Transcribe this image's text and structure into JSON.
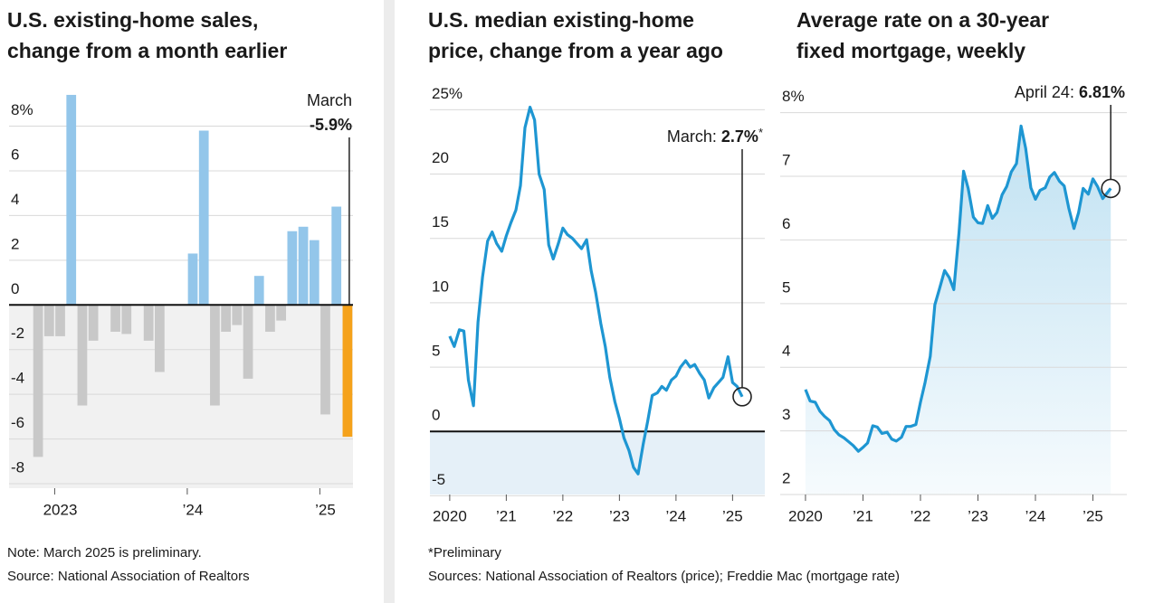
{
  "chart_data": [
    {
      "type": "bar",
      "title": [
        "U.S. existing-home sales,",
        "change from a month earlier"
      ],
      "categories": [
        null,
        null,
        "2023",
        null,
        null,
        null,
        null,
        null,
        null,
        null,
        null,
        null,
        null,
        null,
        "’24",
        null,
        null,
        null,
        null,
        null,
        null,
        null,
        null,
        null,
        null,
        null,
        "’25",
        null,
        null
      ],
      "values": [
        -6.8,
        -1.4,
        -1.4,
        9.4,
        -4.5,
        -1.6,
        0,
        -1.2,
        -1.3,
        0,
        -1.6,
        -3.0,
        0,
        0,
        2.3,
        7.8,
        -4.5,
        -1.2,
        -0.9,
        -3.3,
        1.3,
        -1.2,
        -0.7,
        3.3,
        3.5,
        2.9,
        -4.9,
        4.4,
        -5.9
      ],
      "value_labels": [
        null,
        null,
        null,
        null,
        null,
        null,
        null,
        null,
        null,
        null,
        null,
        null,
        null,
        null,
        null,
        null,
        null,
        null,
        null,
        null,
        null,
        null,
        null,
        null,
        null,
        null,
        null,
        null,
        "-5.9%"
      ],
      "colors": [
        "#c8c8c8",
        "#c8c8c8",
        "#c8c8c8",
        "#93c6ea",
        "#c8c8c8",
        "#c8c8c8",
        "#c8c8c8",
        "#c8c8c8",
        "#c8c8c8",
        "#c8c8c8",
        "#c8c8c8",
        "#c8c8c8",
        "#c8c8c8",
        "#c8c8c8",
        "#93c6ea",
        "#93c6ea",
        "#c8c8c8",
        "#c8c8c8",
        "#c8c8c8",
        "#c8c8c8",
        "#93c6ea",
        "#c8c8c8",
        "#c8c8c8",
        "#93c6ea",
        "#93c6ea",
        "#93c6ea",
        "#c8c8c8",
        "#93c6ea",
        "#f5a21b"
      ],
      "annotation": "March",
      "ylim": [
        -8.2,
        9.6
      ],
      "yticks": [
        {
          "value": 8,
          "label": "8%"
        },
        6,
        4,
        2,
        0,
        -2,
        -4,
        -6,
        -8
      ],
      "grid": true,
      "negative_fill": "#f1f1f1",
      "note": "Note: March 2025 is preliminary.",
      "source": "Source: National Association of Realtors"
    },
    {
      "type": "line",
      "title": [
        "U.S. median existing-home",
        "price, change from a year ago"
      ],
      "x": [
        2020,
        2020.08,
        2020.17,
        2020.25,
        2020.33,
        2020.42,
        2020.5,
        2020.58,
        2020.67,
        2020.75,
        2020.83,
        2020.92,
        2021,
        2021.08,
        2021.17,
        2021.25,
        2021.33,
        2021.42,
        2021.5,
        2021.58,
        2021.67,
        2021.75,
        2021.83,
        2021.92,
        2022,
        2022.08,
        2022.17,
        2022.25,
        2022.33,
        2022.42,
        2022.5,
        2022.58,
        2022.67,
        2022.75,
        2022.83,
        2022.92,
        2023,
        2023.08,
        2023.17,
        2023.25,
        2023.33,
        2023.42,
        2023.5,
        2023.58,
        2023.67,
        2023.75,
        2023.83,
        2023.92,
        2024,
        2024.08,
        2024.17,
        2024.25,
        2024.33,
        2024.42,
        2024.5,
        2024.58,
        2024.67,
        2024.75,
        2024.83,
        2024.92,
        2025,
        2025.08,
        2025.17
      ],
      "values": [
        7.4,
        6.6,
        7.9,
        7.8,
        4.0,
        2.0,
        8.5,
        12.0,
        14.8,
        15.5,
        14.6,
        14.0,
        15.2,
        16.2,
        17.2,
        19.1,
        23.6,
        25.2,
        24.2,
        20.0,
        18.8,
        14.5,
        13.4,
        14.6,
        15.8,
        15.3,
        15.0,
        14.6,
        14.2,
        14.9,
        12.5,
        10.8,
        8.4,
        6.6,
        4.2,
        2.3,
        1.0,
        -0.5,
        -1.5,
        -2.8,
        -3.3,
        -1.0,
        0.8,
        2.8,
        3.0,
        3.5,
        3.2,
        4.0,
        4.3,
        5.0,
        5.5,
        5.0,
        5.2,
        4.5,
        4.0,
        2.6,
        3.4,
        3.8,
        4.2,
        5.8,
        3.8,
        3.5,
        2.7
      ],
      "value_labels": [
        null,
        null,
        null,
        null,
        null,
        null,
        null,
        null,
        null,
        null,
        null,
        null,
        null,
        null,
        null,
        null,
        null,
        null,
        null,
        null,
        null,
        null,
        null,
        null,
        null,
        null,
        null,
        null,
        null,
        null,
        null,
        null,
        null,
        null,
        null,
        null,
        null,
        null,
        null,
        null,
        null,
        null,
        null,
        null,
        null,
        null,
        null,
        null,
        null,
        null,
        null,
        null,
        null,
        null,
        null,
        null,
        null,
        null,
        null,
        null,
        null,
        null,
        "2.7%"
      ],
      "annotation": "March:",
      "annotation_suffix": "*",
      "color": "#1e96d2",
      "xlim": [
        2019.65,
        2025.57
      ],
      "xticks": [
        2020,
        {
          "value": 2021,
          "label": "’21"
        },
        {
          "value": 2022,
          "label": "’22"
        },
        {
          "value": 2023,
          "label": "’23"
        },
        {
          "value": 2024,
          "label": "’24"
        },
        {
          "value": 2025,
          "label": "’25"
        }
      ],
      "ylim": [
        -4.9,
        26.5
      ],
      "yticks": [
        {
          "value": 25,
          "label": "25%"
        },
        20,
        15,
        10,
        5,
        0,
        -5
      ],
      "grid": true,
      "negative_fill": "#e5f0f8",
      "note": "*Preliminary",
      "source": "Sources: National Association of Realtors (price); Freddie Mac (mortgage rate)"
    },
    {
      "type": "line",
      "area": true,
      "title": [
        "Average rate on a 30-year",
        "fixed mortgage, weekly"
      ],
      "x": [
        2020,
        2020.08,
        2020.17,
        2020.25,
        2020.33,
        2020.42,
        2020.5,
        2020.58,
        2020.67,
        2020.75,
        2020.83,
        2020.92,
        2021,
        2021.08,
        2021.17,
        2021.25,
        2021.33,
        2021.42,
        2021.5,
        2021.58,
        2021.67,
        2021.75,
        2021.83,
        2021.92,
        2022,
        2022.08,
        2022.17,
        2022.25,
        2022.33,
        2022.42,
        2022.5,
        2022.58,
        2022.67,
        2022.75,
        2022.83,
        2022.92,
        2023,
        2023.08,
        2023.17,
        2023.25,
        2023.33,
        2023.42,
        2023.5,
        2023.58,
        2023.67,
        2023.75,
        2023.83,
        2023.92,
        2024,
        2024.08,
        2024.17,
        2024.25,
        2024.33,
        2024.42,
        2024.5,
        2024.58,
        2024.67,
        2024.75,
        2024.83,
        2024.92,
        2025,
        2025.08,
        2025.17,
        2025.31
      ],
      "values": [
        3.65,
        3.47,
        3.45,
        3.31,
        3.23,
        3.16,
        3.02,
        2.94,
        2.89,
        2.83,
        2.77,
        2.68,
        2.74,
        2.81,
        3.08,
        3.06,
        2.96,
        2.98,
        2.87,
        2.84,
        2.9,
        3.07,
        3.07,
        3.1,
        3.45,
        3.76,
        4.17,
        4.98,
        5.23,
        5.52,
        5.41,
        5.22,
        6.11,
        7.08,
        6.81,
        6.36,
        6.27,
        6.26,
        6.54,
        6.34,
        6.43,
        6.71,
        6.84,
        7.07,
        7.2,
        7.79,
        7.44,
        6.82,
        6.64,
        6.78,
        6.82,
        6.99,
        7.06,
        6.92,
        6.85,
        6.5,
        6.18,
        6.43,
        6.81,
        6.72,
        6.96,
        6.84,
        6.65,
        6.81
      ],
      "value_labels": [
        null,
        null,
        null,
        null,
        null,
        null,
        null,
        null,
        null,
        null,
        null,
        null,
        null,
        null,
        null,
        null,
        null,
        null,
        null,
        null,
        null,
        null,
        null,
        null,
        null,
        null,
        null,
        null,
        null,
        null,
        null,
        null,
        null,
        null,
        null,
        null,
        null,
        null,
        null,
        null,
        null,
        null,
        null,
        null,
        null,
        null,
        null,
        null,
        null,
        null,
        null,
        null,
        null,
        null,
        null,
        null,
        null,
        null,
        null,
        null,
        null,
        null,
        null,
        "6.81%"
      ],
      "annotation": "April 24:",
      "color": "#1e96d2",
      "xlim": [
        2019.56,
        2025.59
      ],
      "xticks": [
        2020,
        {
          "value": 2021,
          "label": "’21"
        },
        {
          "value": 2022,
          "label": "’22"
        },
        {
          "value": 2023,
          "label": "’23"
        },
        {
          "value": 2024,
          "label": "’24"
        },
        {
          "value": 2025,
          "label": "’25"
        }
      ],
      "ylim": [
        2,
        8.35
      ],
      "yticks": [
        {
          "value": 8,
          "label": "8%"
        },
        7,
        6,
        5,
        4,
        3,
        2
      ],
      "grid": true
    }
  ]
}
